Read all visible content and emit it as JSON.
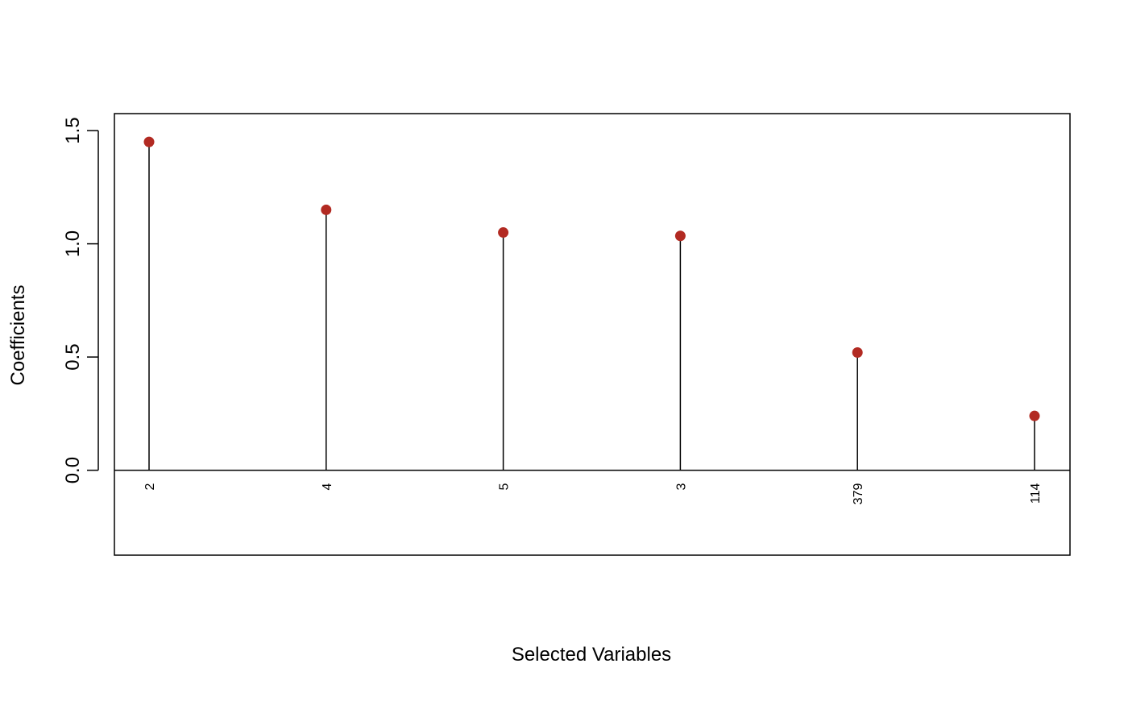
{
  "chart_data": {
    "type": "lollipop",
    "xlabel": "Selected Variables",
    "ylabel": "Coefficients",
    "categories": [
      "2",
      "4",
      "5",
      "3",
      "379",
      "114"
    ],
    "values": [
      1.45,
      1.15,
      1.05,
      1.035,
      0.52,
      0.24
    ],
    "ylim": [
      -0.375,
      1.575
    ],
    "yticks": [
      0.0,
      0.5,
      1.0,
      1.5
    ],
    "ytick_labels": [
      "0.0",
      "0.5",
      "1.0",
      "1.5"
    ],
    "xtick_orientation": "vertical",
    "ytick_orientation": "vertical",
    "baseline": 0,
    "grid": false,
    "legend": "none",
    "colors": {
      "point": "#b22a22",
      "stem": "#000000",
      "axis": "#000000"
    }
  }
}
